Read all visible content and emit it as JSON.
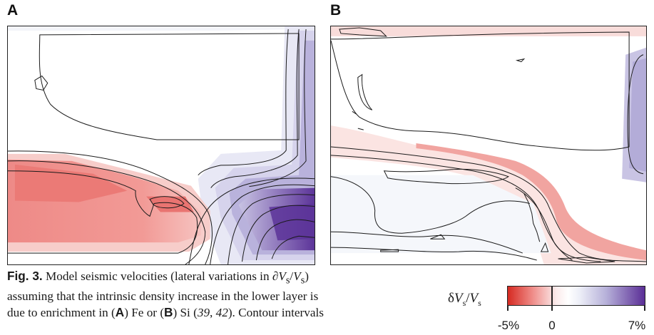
{
  "figure": {
    "panels": [
      {
        "label": "A"
      },
      {
        "label": "B"
      }
    ],
    "caption": {
      "prefix": "Fig. 3.",
      "line1_text": " Model seismic velocities (lateral variations in ∂",
      "line1_var": "V",
      "line1_sub": "s",
      "line1_slash": "/",
      "line1_var2": "V",
      "line1_sub2": "s",
      "line1_end": ")",
      "line2": "assuming that the intrinsic density increase in the lower layer is",
      "line3_a": "due to enrichment in (",
      "line3_A": "A",
      "line3_b": ") Fe or (",
      "line3_B": "B",
      "line3_c": ") Si (",
      "line3_ref1": "39",
      "line3_sep": ", ",
      "line3_ref2": "42",
      "line3_d": "). Contour intervals"
    },
    "colorbar": {
      "label_delta": "δ",
      "label_var": "V",
      "label_sub": "s",
      "label_slash": "/",
      "label_var2": "V",
      "label_sub2": "s",
      "ticks": [
        "-5%",
        "0",
        "7%"
      ],
      "colors": {
        "min": "#d62a22",
        "mid": "#ffffff",
        "max": "#5a2e96"
      }
    }
  }
}
